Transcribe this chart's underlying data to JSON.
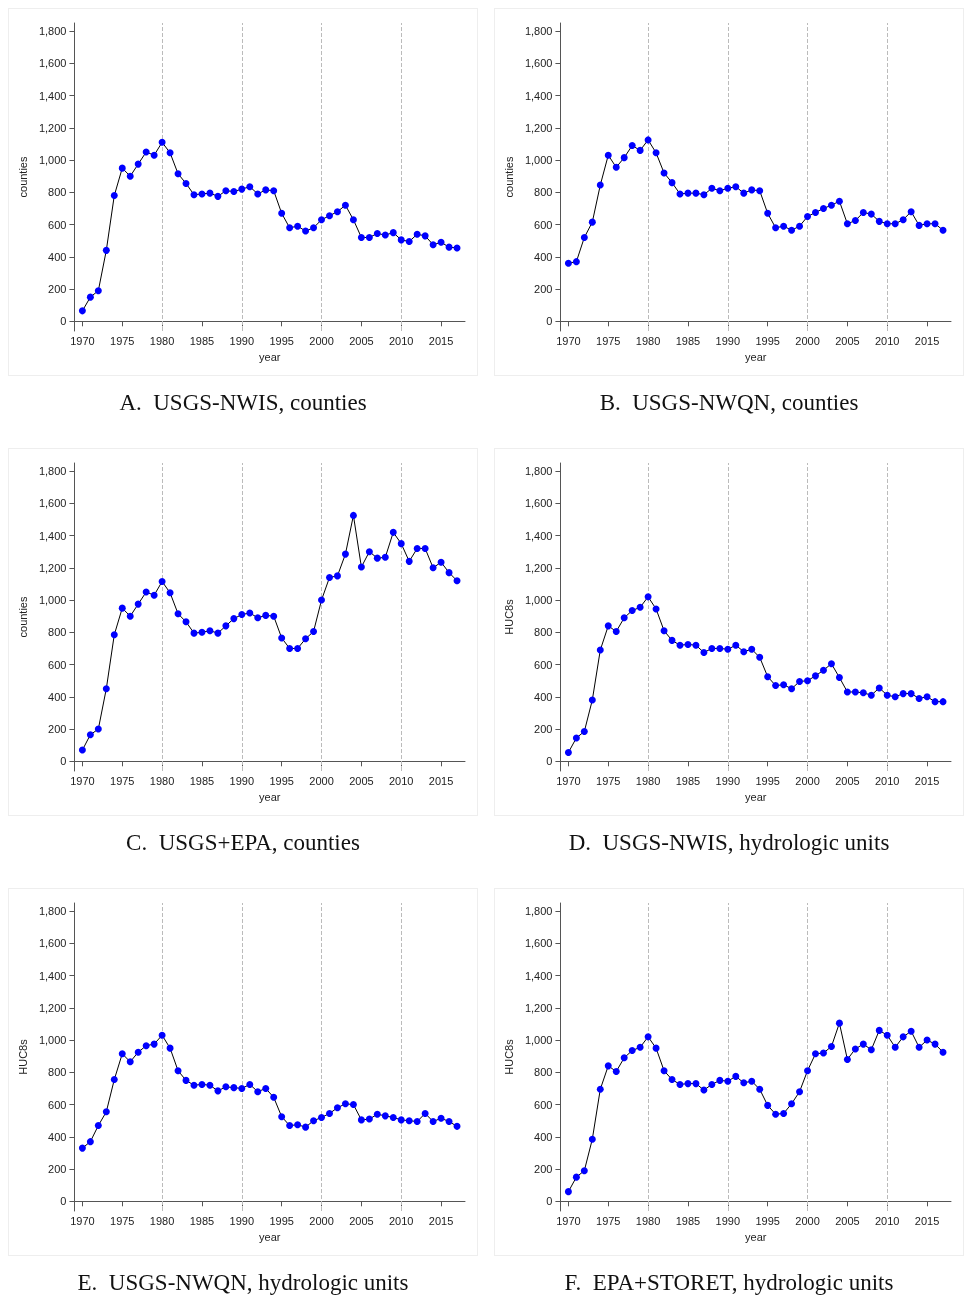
{
  "chart_data": [
    {
      "type": "line",
      "title": "A.  USGS-NWIS, counties",
      "xlabel": "year",
      "ylabel": "counties",
      "x": [
        1970,
        1971,
        1972,
        1973,
        1974,
        1975,
        1976,
        1977,
        1978,
        1979,
        1980,
        1981,
        1982,
        1983,
        1984,
        1985,
        1986,
        1987,
        1988,
        1989,
        1990,
        1991,
        1992,
        1993,
        1994,
        1995,
        1996,
        1997,
        1998,
        1999,
        2000,
        2001,
        2002,
        2003,
        2004,
        2005,
        2006,
        2007,
        2008,
        2009,
        2010,
        2011,
        2012,
        2013,
        2014,
        2015,
        2016,
        2017
      ],
      "color": "#0000ff",
      "marker": "circle",
      "line_style": "solid",
      "values": [
        65,
        150,
        190,
        440,
        780,
        950,
        900,
        975,
        1050,
        1030,
        1110,
        1045,
        915,
        855,
        785,
        790,
        795,
        775,
        810,
        805,
        820,
        835,
        790,
        815,
        810,
        670,
        580,
        590,
        560,
        580,
        630,
        655,
        680,
        720,
        630,
        520,
        520,
        545,
        535,
        550,
        505,
        495,
        540,
        530,
        475,
        490,
        460,
        455
      ],
      "xlim": [
        1969,
        2018
      ],
      "xticks": [
        1970,
        1975,
        1980,
        1985,
        1990,
        1995,
        2000,
        2005,
        2010,
        2015
      ],
      "ylim": [
        -60,
        1850
      ],
      "yticks": [
        0,
        200,
        400,
        600,
        800,
        {
          "value": 1000,
          "label": "1,000"
        },
        {
          "value": 1200,
          "label": "1,200"
        },
        {
          "value": 1400,
          "label": "1,400"
        },
        {
          "value": 1600,
          "label": "1,600"
        },
        {
          "value": 1800,
          "label": "1,800"
        }
      ],
      "grid": false,
      "ref_lines": [
        {
          "axis": "x",
          "value": 1980,
          "color": "#bbbbbb",
          "line_style": "dashed"
        },
        {
          "axis": "x",
          "value": 1990,
          "color": "#bbbbbb",
          "line_style": "dashed"
        },
        {
          "axis": "x",
          "value": 2000,
          "color": "#bbbbbb",
          "line_style": "dashed"
        },
        {
          "axis": "x",
          "value": 2010,
          "color": "#bbbbbb",
          "line_style": "dashed"
        }
      ]
    },
    {
      "type": "line",
      "title": "B.  USGS-NWQN, counties",
      "xlabel": "year",
      "ylabel": "counties",
      "x": [
        1970,
        1971,
        1972,
        1973,
        1974,
        1975,
        1976,
        1977,
        1978,
        1979,
        1980,
        1981,
        1982,
        1983,
        1984,
        1985,
        1986,
        1987,
        1988,
        1989,
        1990,
        1991,
        1992,
        1993,
        1994,
        1995,
        1996,
        1997,
        1998,
        1999,
        2000,
        2001,
        2002,
        2003,
        2004,
        2005,
        2006,
        2007,
        2008,
        2009,
        2010,
        2011,
        2012,
        2013,
        2014,
        2015,
        2016,
        2017
      ],
      "color": "#0000ff",
      "marker": "circle",
      "line_style": "solid",
      "values": [
        360,
        370,
        520,
        615,
        845,
        1030,
        955,
        1015,
        1090,
        1060,
        1125,
        1045,
        920,
        860,
        790,
        795,
        795,
        785,
        825,
        810,
        825,
        835,
        795,
        815,
        810,
        670,
        580,
        590,
        565,
        590,
        650,
        675,
        700,
        720,
        745,
        605,
        625,
        675,
        665,
        620,
        605,
        605,
        630,
        680,
        595,
        605,
        605,
        565
      ],
      "xlim": [
        1969,
        2018
      ],
      "xticks": [
        1970,
        1975,
        1980,
        1985,
        1990,
        1995,
        2000,
        2005,
        2010,
        2015
      ],
      "ylim": [
        -60,
        1850
      ],
      "yticks": [
        0,
        200,
        400,
        600,
        800,
        {
          "value": 1000,
          "label": "1,000"
        },
        {
          "value": 1200,
          "label": "1,200"
        },
        {
          "value": 1400,
          "label": "1,400"
        },
        {
          "value": 1600,
          "label": "1,600"
        },
        {
          "value": 1800,
          "label": "1,800"
        }
      ],
      "grid": false,
      "ref_lines": [
        {
          "axis": "x",
          "value": 1980,
          "color": "#bbbbbb",
          "line_style": "dashed"
        },
        {
          "axis": "x",
          "value": 1990,
          "color": "#bbbbbb",
          "line_style": "dashed"
        },
        {
          "axis": "x",
          "value": 2000,
          "color": "#bbbbbb",
          "line_style": "dashed"
        },
        {
          "axis": "x",
          "value": 2010,
          "color": "#bbbbbb",
          "line_style": "dashed"
        }
      ]
    },
    {
      "type": "line",
      "title": "C.  USGS+EPA, counties",
      "xlabel": "year",
      "ylabel": "counties",
      "x": [
        1970,
        1971,
        1972,
        1973,
        1974,
        1975,
        1976,
        1977,
        1978,
        1979,
        1980,
        1981,
        1982,
        1983,
        1984,
        1985,
        1986,
        1987,
        1988,
        1989,
        1990,
        1991,
        1992,
        1993,
        1994,
        1995,
        1996,
        1997,
        1998,
        1999,
        2000,
        2001,
        2002,
        2003,
        2004,
        2005,
        2006,
        2007,
        2008,
        2009,
        2010,
        2011,
        2012,
        2013,
        2014,
        2015,
        2016,
        2017
      ],
      "color": "#0000ff",
      "marker": "circle",
      "line_style": "solid",
      "values": [
        70,
        165,
        200,
        450,
        785,
        950,
        900,
        975,
        1050,
        1030,
        1115,
        1045,
        915,
        865,
        795,
        800,
        810,
        795,
        840,
        885,
        910,
        920,
        890,
        905,
        900,
        765,
        700,
        700,
        760,
        805,
        1000,
        1140,
        1150,
        1285,
        1525,
        1205,
        1300,
        1260,
        1265,
        1420,
        1350,
        1240,
        1320,
        1320,
        1200,
        1235,
        1170,
        1120
      ],
      "xlim": [
        1969,
        2018
      ],
      "xticks": [
        1970,
        1975,
        1980,
        1985,
        1990,
        1995,
        2000,
        2005,
        2010,
        2015
      ],
      "ylim": [
        -60,
        1850
      ],
      "yticks": [
        0,
        200,
        400,
        600,
        800,
        {
          "value": 1000,
          "label": "1,000"
        },
        {
          "value": 1200,
          "label": "1,200"
        },
        {
          "value": 1400,
          "label": "1,400"
        },
        {
          "value": 1600,
          "label": "1,600"
        },
        {
          "value": 1800,
          "label": "1,800"
        }
      ],
      "grid": false,
      "ref_lines": [
        {
          "axis": "x",
          "value": 1980,
          "color": "#bbbbbb",
          "line_style": "dashed"
        },
        {
          "axis": "x",
          "value": 1990,
          "color": "#bbbbbb",
          "line_style": "dashed"
        },
        {
          "axis": "x",
          "value": 2000,
          "color": "#bbbbbb",
          "line_style": "dashed"
        },
        {
          "axis": "x",
          "value": 2010,
          "color": "#bbbbbb",
          "line_style": "dashed"
        }
      ]
    },
    {
      "type": "line",
      "title": "D.  USGS-NWIS, hydrologic units",
      "xlabel": "year",
      "ylabel": "HUC8s",
      "x": [
        1970,
        1971,
        1972,
        1973,
        1974,
        1975,
        1976,
        1977,
        1978,
        1979,
        1980,
        1981,
        1982,
        1983,
        1984,
        1985,
        1986,
        1987,
        1988,
        1989,
        1990,
        1991,
        1992,
        1993,
        1994,
        1995,
        1996,
        1997,
        1998,
        1999,
        2000,
        2001,
        2002,
        2003,
        2004,
        2005,
        2006,
        2007,
        2008,
        2009,
        2010,
        2011,
        2012,
        2013,
        2014,
        2015,
        2016,
        2017
      ],
      "color": "#0000ff",
      "marker": "circle",
      "line_style": "solid",
      "values": [
        55,
        145,
        185,
        380,
        690,
        840,
        805,
        890,
        935,
        955,
        1020,
        945,
        810,
        750,
        720,
        725,
        720,
        675,
        700,
        700,
        695,
        720,
        680,
        695,
        645,
        525,
        470,
        475,
        450,
        495,
        500,
        530,
        565,
        605,
        520,
        430,
        430,
        425,
        410,
        455,
        410,
        400,
        420,
        420,
        390,
        400,
        370,
        370
      ],
      "xlim": [
        1969,
        2018
      ],
      "xticks": [
        1970,
        1975,
        1980,
        1985,
        1990,
        1995,
        2000,
        2005,
        2010,
        2015
      ],
      "ylim": [
        -60,
        1850
      ],
      "yticks": [
        0,
        200,
        400,
        600,
        800,
        {
          "value": 1000,
          "label": "1,000"
        },
        {
          "value": 1200,
          "label": "1,200"
        },
        {
          "value": 1400,
          "label": "1,400"
        },
        {
          "value": 1600,
          "label": "1,600"
        },
        {
          "value": 1800,
          "label": "1,800"
        }
      ],
      "grid": false,
      "ref_lines": [
        {
          "axis": "x",
          "value": 1980,
          "color": "#bbbbbb",
          "line_style": "dashed"
        },
        {
          "axis": "x",
          "value": 1990,
          "color": "#bbbbbb",
          "line_style": "dashed"
        },
        {
          "axis": "x",
          "value": 2000,
          "color": "#bbbbbb",
          "line_style": "dashed"
        },
        {
          "axis": "x",
          "value": 2010,
          "color": "#bbbbbb",
          "line_style": "dashed"
        }
      ]
    },
    {
      "type": "line",
      "title": "E.  USGS-NWQN, hydrologic units",
      "xlabel": "year",
      "ylabel": "HUC8s",
      "x": [
        1970,
        1971,
        1972,
        1973,
        1974,
        1975,
        1976,
        1977,
        1978,
        1979,
        1980,
        1981,
        1982,
        1983,
        1984,
        1985,
        1986,
        1987,
        1988,
        1989,
        1990,
        1991,
        1992,
        1993,
        1994,
        1995,
        1996,
        1997,
        1998,
        1999,
        2000,
        2001,
        2002,
        2003,
        2004,
        2005,
        2006,
        2007,
        2008,
        2009,
        2010,
        2011,
        2012,
        2013,
        2014,
        2015,
        2016,
        2017
      ],
      "color": "#0000ff",
      "marker": "circle",
      "line_style": "solid",
      "values": [
        330,
        370,
        470,
        555,
        755,
        915,
        865,
        925,
        965,
        975,
        1030,
        950,
        810,
        750,
        720,
        725,
        720,
        685,
        710,
        705,
        700,
        725,
        680,
        700,
        645,
        525,
        470,
        475,
        460,
        500,
        520,
        545,
        580,
        605,
        600,
        505,
        510,
        540,
        530,
        520,
        505,
        500,
        495,
        545,
        495,
        515,
        495,
        465
      ],
      "xlim": [
        1969,
        2018
      ],
      "xticks": [
        1970,
        1975,
        1980,
        1985,
        1990,
        1995,
        2000,
        2005,
        2010,
        2015
      ],
      "ylim": [
        -60,
        1850
      ],
      "yticks": [
        0,
        200,
        400,
        600,
        800,
        {
          "value": 1000,
          "label": "1,000"
        },
        {
          "value": 1200,
          "label": "1,200"
        },
        {
          "value": 1400,
          "label": "1,400"
        },
        {
          "value": 1600,
          "label": "1,600"
        },
        {
          "value": 1800,
          "label": "1,800"
        }
      ],
      "grid": false,
      "ref_lines": [
        {
          "axis": "x",
          "value": 1980,
          "color": "#bbbbbb",
          "line_style": "dashed"
        },
        {
          "axis": "x",
          "value": 1990,
          "color": "#bbbbbb",
          "line_style": "dashed"
        },
        {
          "axis": "x",
          "value": 2000,
          "color": "#bbbbbb",
          "line_style": "dashed"
        },
        {
          "axis": "x",
          "value": 2010,
          "color": "#bbbbbb",
          "line_style": "dashed"
        }
      ]
    },
    {
      "type": "line",
      "title": "F.  EPA+STORET, hydrologic units",
      "xlabel": "year",
      "ylabel": "HUC8s",
      "x": [
        1970,
        1971,
        1972,
        1973,
        1974,
        1975,
        1976,
        1977,
        1978,
        1979,
        1980,
        1981,
        1982,
        1983,
        1984,
        1985,
        1986,
        1987,
        1988,
        1989,
        1990,
        1991,
        1992,
        1993,
        1994,
        1995,
        1996,
        1997,
        1998,
        1999,
        2000,
        2001,
        2002,
        2003,
        2004,
        2005,
        2006,
        2007,
        2008,
        2009,
        2010,
        2011,
        2012,
        2013,
        2014,
        2015,
        2016,
        2017
      ],
      "color": "#0000ff",
      "marker": "circle",
      "line_style": "solid",
      "values": [
        60,
        150,
        190,
        385,
        695,
        840,
        805,
        890,
        935,
        955,
        1020,
        950,
        810,
        755,
        725,
        730,
        730,
        690,
        725,
        750,
        745,
        775,
        735,
        745,
        695,
        595,
        540,
        545,
        605,
        680,
        810,
        915,
        920,
        960,
        1105,
        880,
        945,
        975,
        940,
        1060,
        1030,
        955,
        1020,
        1055,
        955,
        1000,
        975,
        925
      ],
      "xlim": [
        1969,
        2018
      ],
      "xticks": [
        1970,
        1975,
        1980,
        1985,
        1990,
        1995,
        2000,
        2005,
        2010,
        2015
      ],
      "ylim": [
        -60,
        1850
      ],
      "yticks": [
        0,
        200,
        400,
        600,
        800,
        {
          "value": 1000,
          "label": "1,000"
        },
        {
          "value": 1200,
          "label": "1,200"
        },
        {
          "value": 1400,
          "label": "1,400"
        },
        {
          "value": 1600,
          "label": "1,600"
        },
        {
          "value": 1800,
          "label": "1,800"
        }
      ],
      "grid": false,
      "ref_lines": [
        {
          "axis": "x",
          "value": 1980,
          "color": "#bbbbbb",
          "line_style": "dashed"
        },
        {
          "axis": "x",
          "value": 1990,
          "color": "#bbbbbb",
          "line_style": "dashed"
        },
        {
          "axis": "x",
          "value": 2000,
          "color": "#bbbbbb",
          "line_style": "dashed"
        },
        {
          "axis": "x",
          "value": 2010,
          "color": "#bbbbbb",
          "line_style": "dashed"
        }
      ]
    }
  ]
}
